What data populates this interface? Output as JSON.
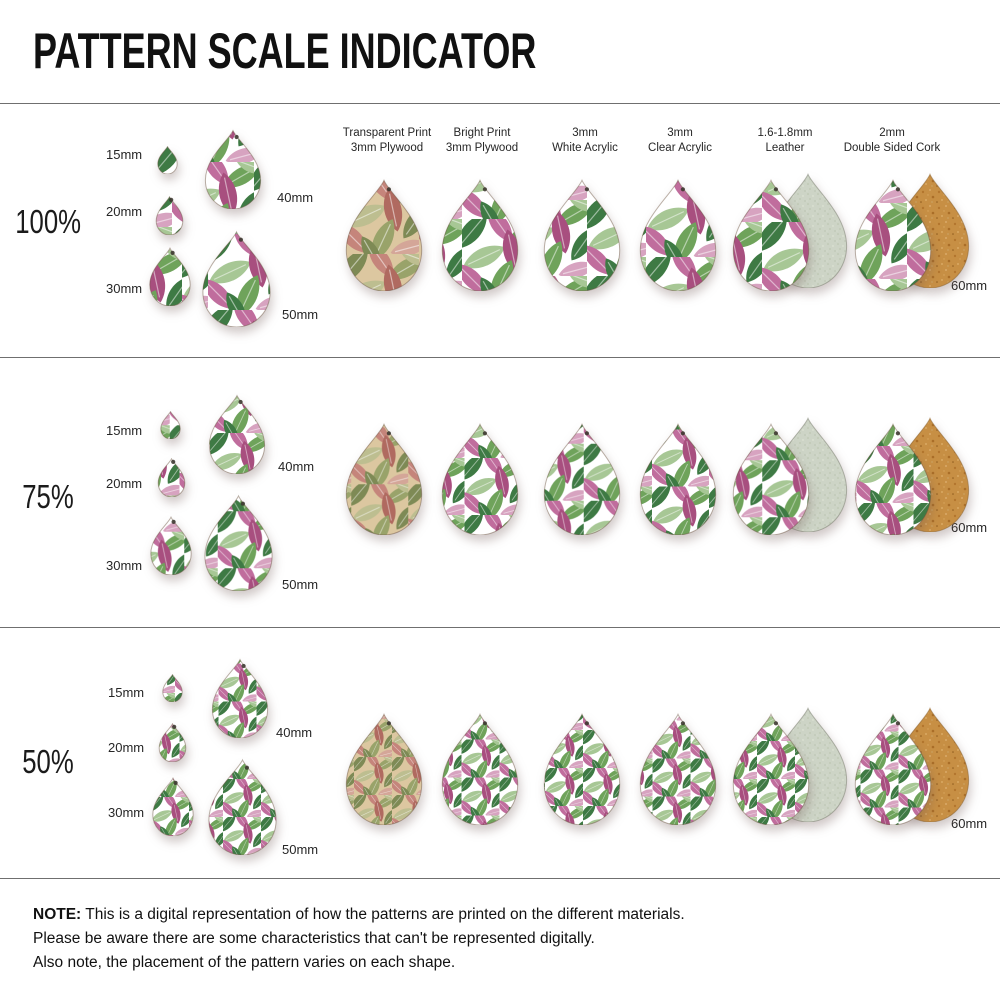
{
  "title": "PATTERN SCALE INDICATOR",
  "sizes": [
    "15mm",
    "20mm",
    "30mm",
    "40mm",
    "50mm",
    "60mm"
  ],
  "rows": [
    {
      "scale_label": "100%",
      "pattern_scale": 1
    },
    {
      "scale_label": "75%",
      "pattern_scale": 0.75
    },
    {
      "scale_label": "50%",
      "pattern_scale": 0.5
    }
  ],
  "materials": [
    {
      "line1": "Transparent Print",
      "line2": "3mm Plywood"
    },
    {
      "line1": "Bright Print",
      "line2": "3mm Plywood"
    },
    {
      "line1": "3mm",
      "line2": "White Acrylic"
    },
    {
      "line1": "3mm",
      "line2": "Clear Acrylic"
    },
    {
      "line1": "1.6-1.8mm",
      "line2": "Leather"
    },
    {
      "line1": "2mm",
      "line2": "Double Sided Cork"
    }
  ],
  "note": {
    "label": "NOTE:",
    "line1": "This is a digital representation of how the patterns are printed on the different materials.",
    "line2": "Please be aware there are some characteristics that can't be represented digitally.",
    "line3": "Also note, the placement of the pattern varies on each shape."
  },
  "colors": {
    "leaf_greens": [
      "#3e7a44",
      "#6fa35b",
      "#a7c795"
    ],
    "leaf_pinks": [
      "#c06d9d",
      "#a84f7f",
      "#d7a3c0"
    ],
    "muted_greens": [
      "#7e8a55",
      "#99a36a",
      "#bdbe90"
    ],
    "muted_pinks": [
      "#c5857b",
      "#b06a60",
      "#d4a698"
    ],
    "plywood_bg": "#dcc7a0",
    "white_bg": "#ffffff",
    "cork": "#c78f44",
    "leather": "#cdd4c6",
    "separator": "#6f6f6f"
  }
}
